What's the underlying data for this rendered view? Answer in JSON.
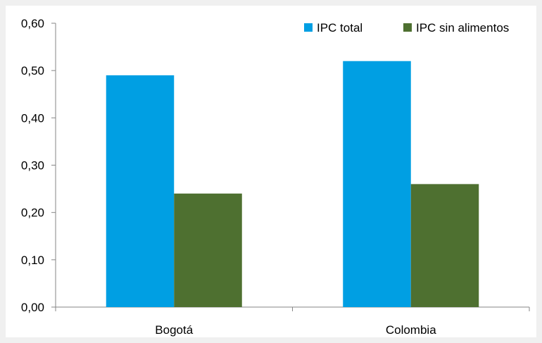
{
  "chart_data": {
    "type": "bar",
    "categories": [
      "Bogotá",
      "Colombia"
    ],
    "series": [
      {
        "name": "IPC total",
        "values": [
          0.49,
          0.52
        ],
        "color": "#009fe3"
      },
      {
        "name": "IPC sin alimentos",
        "values": [
          0.24,
          0.26
        ],
        "color": "#4e7030"
      }
    ],
    "ylim": [
      0,
      0.6
    ],
    "yticks": [
      "0,00",
      "0,10",
      "0,20",
      "0,30",
      "0,40",
      "0,50",
      "0,60"
    ],
    "xlabel": "",
    "ylabel": "",
    "title": "",
    "grid": false,
    "legend_position": "top-right"
  }
}
